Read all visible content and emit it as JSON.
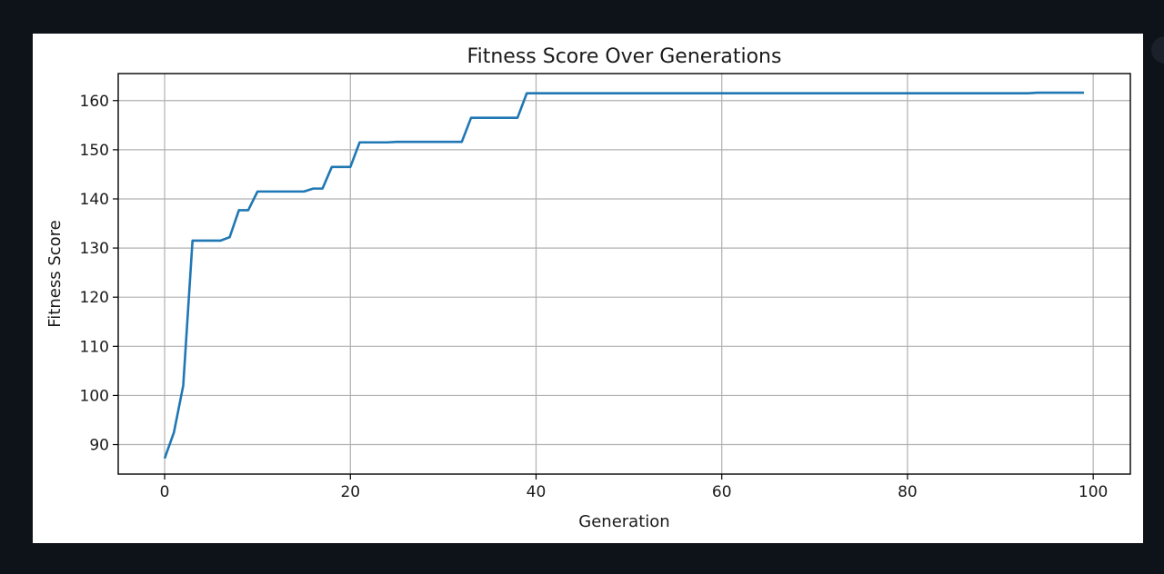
{
  "chart_data": {
    "type": "line",
    "title": "Fitness Score Over Generations",
    "xlabel": "Generation",
    "ylabel": "Fitness Score",
    "xlim": [
      -5,
      104
    ],
    "ylim": [
      84,
      165.5
    ],
    "xticks": [
      0,
      20,
      40,
      60,
      80,
      100
    ],
    "yticks": [
      90,
      100,
      110,
      120,
      130,
      140,
      150,
      160
    ],
    "grid": true,
    "legend": "none",
    "series": [
      {
        "color": "#1f77b4",
        "x": [
          0,
          1,
          2,
          3,
          4,
          5,
          6,
          7,
          8,
          9,
          10,
          11,
          12,
          13,
          14,
          15,
          16,
          17,
          18,
          19,
          20,
          21,
          22,
          23,
          24,
          25,
          26,
          27,
          28,
          29,
          30,
          31,
          32,
          33,
          34,
          35,
          36,
          37,
          38,
          39,
          40,
          41,
          42,
          43,
          44,
          45,
          46,
          47,
          48,
          49,
          50,
          51,
          52,
          53,
          54,
          55,
          56,
          57,
          58,
          59,
          60,
          61,
          62,
          63,
          64,
          65,
          66,
          67,
          68,
          69,
          70,
          71,
          72,
          73,
          74,
          75,
          76,
          77,
          78,
          79,
          80,
          81,
          82,
          83,
          84,
          85,
          86,
          87,
          88,
          89,
          90,
          91,
          92,
          93,
          94,
          95,
          96,
          97,
          98,
          99
        ],
        "y": [
          87.2,
          92.5,
          102,
          131.5,
          131.5,
          131.5,
          131.5,
          132.2,
          137.7,
          137.7,
          141.5,
          141.5,
          141.5,
          141.5,
          141.5,
          141.5,
          142.1,
          142.1,
          146.5,
          146.5,
          146.5,
          151.5,
          151.5,
          151.5,
          151.5,
          151.6,
          151.6,
          151.6,
          151.6,
          151.6,
          151.6,
          151.6,
          151.6,
          156.5,
          156.5,
          156.5,
          156.5,
          156.5,
          156.5,
          161.5,
          161.5,
          161.5,
          161.5,
          161.5,
          161.5,
          161.5,
          161.5,
          161.5,
          161.5,
          161.5,
          161.5,
          161.5,
          161.5,
          161.5,
          161.5,
          161.5,
          161.5,
          161.5,
          161.5,
          161.5,
          161.5,
          161.5,
          161.5,
          161.5,
          161.5,
          161.5,
          161.5,
          161.5,
          161.5,
          161.5,
          161.5,
          161.5,
          161.5,
          161.5,
          161.5,
          161.5,
          161.5,
          161.5,
          161.5,
          161.5,
          161.5,
          161.5,
          161.5,
          161.5,
          161.5,
          161.5,
          161.5,
          161.5,
          161.5,
          161.5,
          161.5,
          161.5,
          161.5,
          161.5,
          161.6,
          161.6,
          161.6,
          161.6,
          161.6,
          161.6
        ]
      }
    ]
  },
  "colors": {
    "page_background": "#0e1219",
    "panel_background": "#ffffff",
    "line": "#1f77b4",
    "grid": "#b0b0b0",
    "axes": "#000000"
  }
}
